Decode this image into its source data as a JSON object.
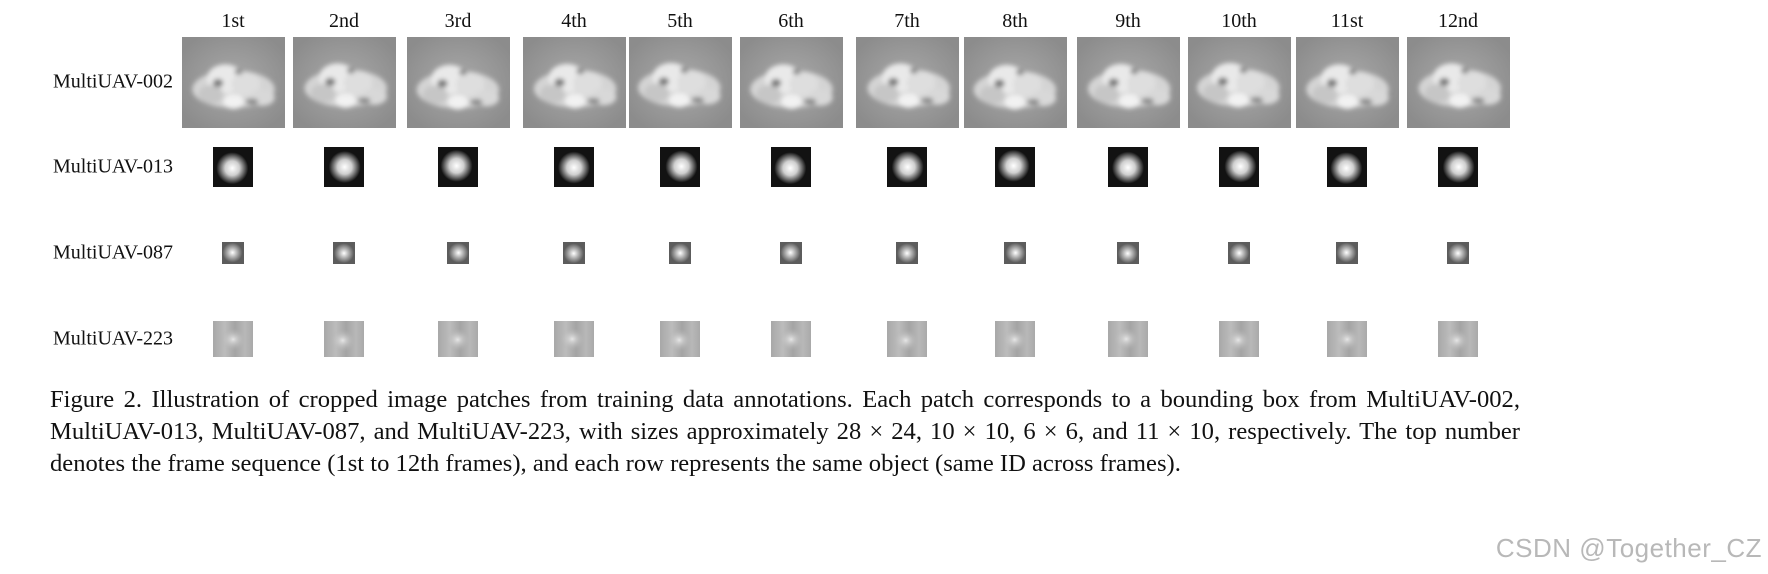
{
  "frames": [
    "1st",
    "2nd",
    "3rd",
    "4th",
    "5th",
    "6th",
    "7th",
    "8th",
    "9th",
    "10th",
    "11st",
    "12nd"
  ],
  "rows": [
    {
      "id": "MultiUAV-002",
      "style": "cloud"
    },
    {
      "id": "MultiUAV-013",
      "style": "dark-blob"
    },
    {
      "id": "MultiUAV-087",
      "style": "small-dot"
    },
    {
      "id": "MultiUAV-223",
      "style": "faint"
    }
  ],
  "caption": "Figure 2. Illustration of cropped image patches from training data annotations. Each patch corresponds to a bounding box from MultiUAV-002, MultiUAV-013, MultiUAV-087, and MultiUAV-223, with sizes approximately 28 × 24, 10 × 10, 6 × 6, and 11 × 10, respectively. The top number denotes the frame sequence (1st to 12th frames), and each row represents the same object (same ID across frames).",
  "watermark": "CSDN @Together_CZ"
}
